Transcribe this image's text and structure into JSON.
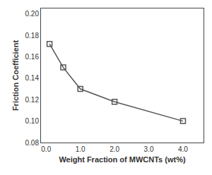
{
  "chart_data": {
    "type": "line",
    "x": [
      0.1,
      0.5,
      1.0,
      2.0,
      4.0
    ],
    "values": [
      0.172,
      0.15,
      0.13,
      0.118,
      0.1
    ],
    "xlabel": "Weight Fraction of MWCNTs (wt%)",
    "ylabel": "Friction Coefficient",
    "xlim": [
      -0.15,
      4.6
    ],
    "ylim": [
      0.08,
      0.205
    ],
    "xticks": [
      {
        "value": 0.0,
        "label": "0.0"
      },
      {
        "value": 1.0,
        "label": "1.0"
      },
      {
        "value": 2.0,
        "label": "2.0"
      },
      {
        "value": 3.0,
        "label": "3.0"
      },
      {
        "value": 4.0,
        "label": "4.0"
      }
    ],
    "yticks": [
      0.08,
      {
        "value": 0.1,
        "label": "0.10"
      },
      0.12,
      0.14,
      0.16,
      0.18,
      {
        "value": 0.2,
        "label": "0.20"
      }
    ],
    "color": "#555555",
    "marker": "square-open",
    "line_style": "solid",
    "grid": false
  }
}
